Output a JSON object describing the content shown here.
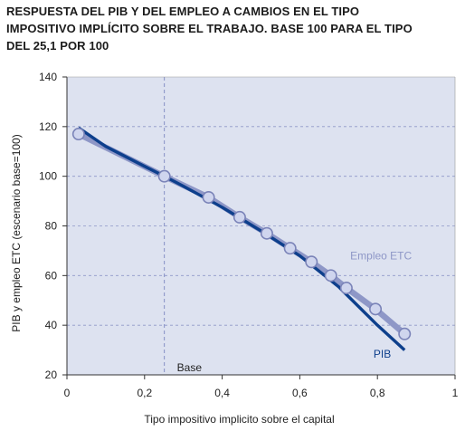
{
  "title_lines": [
    "RESPUESTA DEL PIB Y DEL EMPLEO A CAMBIOS EN EL TIPO",
    "IMPOSITIVO IMPLÍCITO SOBRE EL TRABAJO. BASE 100 PARA EL TIPO",
    "DEL 25,1 POR 100"
  ],
  "colors": {
    "plot_bg": "#dde2f0",
    "pib": "#0d3f8c",
    "empleo": "#8e97c7",
    "marker_fill": "#cfd5ee",
    "marker_stroke": "#7a83b8",
    "grid": "#8e97c7",
    "base_line": "#7b86c0"
  },
  "chart_data": {
    "type": "line",
    "title": "RESPUESTA DEL PIB Y DEL EMPLEO A CAMBIOS EN EL TIPO IMPOSITIVO IMPLÍCITO SOBRE EL TRABAJO. BASE 100 PARA EL TIPO DEL 25,1 POR 100",
    "xlabel": "Tipo impositivo implicito sobre el capital",
    "ylabel": "PIB y empleo ETC (escenario base=100)",
    "xlim": [
      0,
      1
    ],
    "ylim": [
      20,
      140
    ],
    "x_ticks": [
      0,
      0.2,
      0.4,
      0.6,
      0.8,
      1
    ],
    "x_tick_labels": [
      "0",
      "0,2",
      "0,4",
      "0,6",
      "0,8",
      "1"
    ],
    "y_ticks": [
      20,
      40,
      60,
      80,
      100,
      120,
      140
    ],
    "y_tick_labels": [
      "20",
      "40",
      "60",
      "80",
      "100",
      "120",
      "140"
    ],
    "grid": "horizontal dashed",
    "base_x": 0.251,
    "base_label": "Base",
    "series": [
      {
        "name": "PIB",
        "style": "line",
        "x": [
          0.03,
          0.1,
          0.2,
          0.251,
          0.3,
          0.4,
          0.5,
          0.6,
          0.7,
          0.8,
          0.87
        ],
        "values": [
          119.5,
          112,
          104,
          100,
          96,
          87.5,
          78,
          68,
          55.5,
          40,
          30
        ]
      },
      {
        "name": "Empleo ETC",
        "style": "line-markers",
        "x": [
          0.03,
          0.251,
          0.365,
          0.445,
          0.515,
          0.575,
          0.63,
          0.68,
          0.72,
          0.795,
          0.87
        ],
        "values": [
          117,
          100,
          91.5,
          83.5,
          77,
          71,
          65.5,
          60,
          55,
          46.5,
          36.5
        ]
      }
    ],
    "series_labels": [
      {
        "text": "Empleo ETC",
        "near_x": 0.73,
        "near_y": 66.5
      },
      {
        "text": "PIB",
        "near_x": 0.79,
        "near_y": 27
      }
    ]
  }
}
